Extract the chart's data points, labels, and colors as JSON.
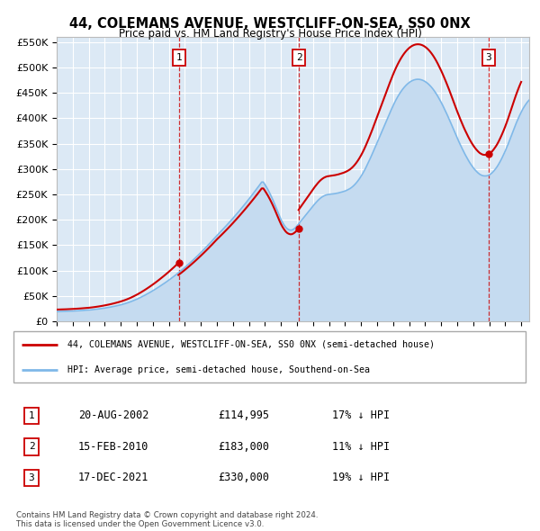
{
  "title": "44, COLEMANS AVENUE, WESTCLIFF-ON-SEA, SS0 0NX",
  "subtitle": "Price paid vs. HM Land Registry's House Price Index (HPI)",
  "ylim": [
    0,
    560000
  ],
  "yticks": [
    0,
    50000,
    100000,
    150000,
    200000,
    250000,
    300000,
    350000,
    400000,
    450000,
    500000,
    550000
  ],
  "ytick_labels": [
    "£0",
    "£50K",
    "£100K",
    "£150K",
    "£200K",
    "£250K",
    "£300K",
    "£350K",
    "£400K",
    "£450K",
    "£500K",
    "£550K"
  ],
  "xlim_start": 1995.0,
  "xlim_end": 2024.5,
  "plot_bg_color": "#dce9f5",
  "red_line_color": "#cc0000",
  "blue_line_color": "#7fb8e8",
  "blue_fill_color": "#c5dbf0",
  "grid_color": "#ffffff",
  "purchase_dates": [
    2002.63,
    2010.12,
    2021.96
  ],
  "purchase_prices": [
    114995,
    183000,
    330000
  ],
  "purchase_labels": [
    "1",
    "2",
    "3"
  ],
  "legend_label_red": "44, COLEMANS AVENUE, WESTCLIFF-ON-SEA, SS0 0NX (semi-detached house)",
  "legend_label_blue": "HPI: Average price, semi-detached house, Southend-on-Sea",
  "table_rows": [
    {
      "num": "1",
      "date": "20-AUG-2002",
      "price": "£114,995",
      "hpi": "17% ↓ HPI"
    },
    {
      "num": "2",
      "date": "15-FEB-2010",
      "price": "£183,000",
      "hpi": "11% ↓ HPI"
    },
    {
      "num": "3",
      "date": "17-DEC-2021",
      "price": "£330,000",
      "hpi": "19% ↓ HPI"
    }
  ],
  "footnote": "Contains HM Land Registry data © Crown copyright and database right 2024.\nThis data is licensed under the Open Government Licence v3.0.",
  "hpi_raw": [
    44000,
    44200,
    44400,
    44600,
    44800,
    45000,
    45200,
    45500,
    45800,
    46100,
    46400,
    46700,
    47100,
    47500,
    47900,
    48300,
    48800,
    49300,
    49800,
    50300,
    50800,
    51500,
    52200,
    53000,
    53800,
    54700,
    55600,
    56600,
    57600,
    58700,
    59800,
    61000,
    62200,
    63500,
    64900,
    66300,
    67800,
    69400,
    71000,
    72700,
    74500,
    76500,
    78500,
    80700,
    83000,
    85500,
    88100,
    90900,
    93800,
    96900,
    100000,
    103300,
    106800,
    110400,
    114100,
    117900,
    121800,
    125800,
    129900,
    134100,
    138400,
    142800,
    147300,
    151900,
    156600,
    161400,
    166200,
    171100,
    176100,
    181200,
    186400,
    191700,
    197100,
    202600,
    208200,
    213900,
    219700,
    225600,
    231600,
    237700,
    243900,
    250200,
    256600,
    263100,
    269700,
    276400,
    283200,
    290100,
    297100,
    304200,
    311400,
    318700,
    326100,
    333600,
    341200,
    348900,
    356700,
    364600,
    372600,
    380700,
    388900,
    396200,
    403600,
    411100,
    418700,
    426400,
    434200,
    442100,
    450100,
    458200,
    466400,
    474700,
    483100,
    491600,
    500200,
    508900,
    517700,
    526600,
    535600,
    544700,
    553900,
    563200,
    572600,
    582100,
    591700,
    601400,
    611200,
    621100,
    631100,
    631000,
    620000,
    608000,
    595000,
    581000,
    566000,
    550000,
    533000,
    515000,
    497000,
    479000,
    462000,
    448000,
    436000,
    426000,
    419000,
    415000,
    413000,
    414000,
    418000,
    424000,
    432000,
    441000,
    450000,
    459000,
    468000,
    477000,
    486000,
    495000,
    504000,
    513000,
    522000,
    531000,
    539000,
    547000,
    554000,
    560000,
    565000,
    569000,
    572000,
    574000,
    575000,
    576000,
    577000,
    578000,
    579000,
    580500,
    582000,
    584000,
    586000,
    588000,
    590500,
    593500,
    597000,
    601000,
    606000,
    612000,
    619000,
    627000,
    636000,
    646000,
    657000,
    669000,
    682000,
    696000,
    711000,
    726000,
    742000,
    758000,
    775000,
    792000,
    809000,
    826000,
    843000,
    860000,
    877000,
    894000,
    911000,
    928000,
    945000,
    961000,
    977000,
    992000,
    1006000,
    1019000,
    1031000,
    1042000,
    1052000,
    1061000,
    1069000,
    1076000,
    1082000,
    1087000,
    1091000,
    1094000,
    1096000,
    1097000,
    1097000,
    1096000,
    1094000,
    1091000,
    1087000,
    1082000,
    1076000,
    1069000,
    1061000,
    1052000,
    1042000,
    1031000,
    1019000,
    1006000,
    993000,
    979000,
    964000,
    949000,
    933000,
    917000,
    900000,
    883000,
    866000,
    849000,
    832000,
    816000,
    800000,
    785000,
    770000,
    756000,
    743000,
    730000,
    718000,
    707000,
    697000,
    688000,
    680000,
    673000,
    667000,
    663000,
    660000,
    659000,
    659000,
    660000,
    663000,
    668000,
    674000,
    682000,
    691000,
    701000,
    713000,
    726000,
    740000,
    755000,
    771000,
    788000,
    806000,
    825000,
    844000,
    863000,
    882000,
    900000,
    917000,
    933000,
    948000,
    962000,
    974000,
    985000,
    995000,
    1003000,
    1010000,
    1016000,
    1020000,
    1023000,
    1025000
  ],
  "hpi_scale": 2.3
}
